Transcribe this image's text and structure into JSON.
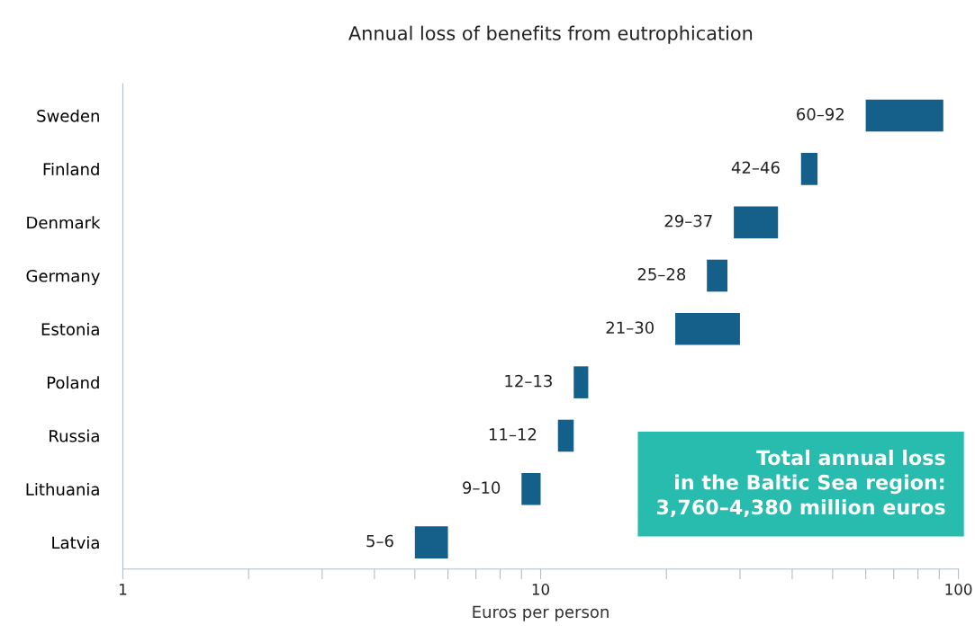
{
  "chart_data": {
    "type": "bar",
    "orientation": "horizontal",
    "title": "Annual loss of benefits from eutrophication",
    "xlabel": "Euros per person",
    "categories": [
      "Sweden",
      "Finland",
      "Denmark",
      "Germany",
      "Estonia",
      "Poland",
      "Russia",
      "Lithuania",
      "Latvia"
    ],
    "base": [
      60,
      42,
      29,
      25,
      21,
      12,
      11,
      9,
      5
    ],
    "values": [
      32,
      4,
      8,
      3,
      9,
      1,
      1,
      1,
      1
    ],
    "value_labels": [
      "60–92",
      "42–46",
      "29–37",
      "25–28",
      "21–30",
      "12–13",
      "11–12",
      "9–10",
      "5–6"
    ],
    "color": "#15608b",
    "log": "x",
    "xlim": [
      1,
      100
    ],
    "xticks": [
      1,
      {
        "value": 2,
        "label": null
      },
      {
        "value": 3,
        "label": null
      },
      {
        "value": 4,
        "label": null
      },
      {
        "value": 5,
        "label": null
      },
      {
        "value": 6,
        "label": null
      },
      {
        "value": 7,
        "label": null
      },
      {
        "value": 8,
        "label": null
      },
      {
        "value": 9,
        "label": null
      },
      10,
      {
        "value": 20,
        "label": null
      },
      {
        "value": 30,
        "label": null
      },
      {
        "value": 40,
        "label": null
      },
      {
        "value": 50,
        "label": null
      },
      {
        "value": 60,
        "label": null
      },
      {
        "value": 70,
        "label": null
      },
      {
        "value": 80,
        "label": null
      },
      {
        "value": 90,
        "label": null
      },
      100
    ],
    "annotations": [
      "Total annual loss\nin the Baltic Sea region:\n3,760–4,380 million euros"
    ],
    "legend": false,
    "grid": false
  }
}
